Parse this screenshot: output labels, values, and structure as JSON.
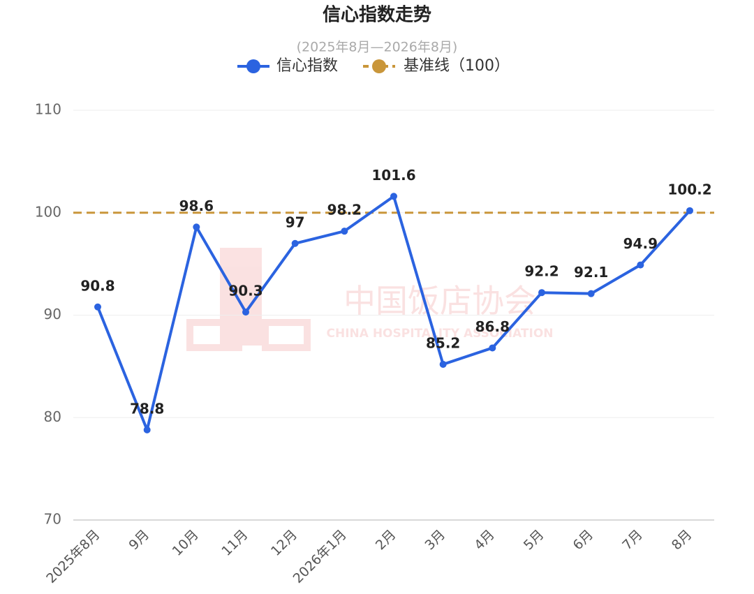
{
  "chart_data": {
    "type": "line",
    "title": "信心指数走势",
    "subtitle": "(2025年8月—2026年8月)",
    "categories": [
      "2025年8月",
      "9月",
      "10月",
      "11月",
      "12月",
      "2026年1月",
      "2月",
      "3月",
      "4月",
      "5月",
      "6月",
      "7月",
      "8月"
    ],
    "series": [
      {
        "name": "信心指数",
        "color": "#2b63e0",
        "values": [
          90.8,
          78.8,
          98.6,
          90.3,
          97,
          98.2,
          101.6,
          85.2,
          86.8,
          92.2,
          92.1,
          94.9,
          100.2
        ]
      }
    ],
    "baseline": {
      "name": "基准线（100）",
      "value": 100,
      "color": "#c9963a"
    },
    "ylim": [
      70,
      110
    ],
    "yticks": [
      70,
      80,
      90,
      100,
      110
    ],
    "grid": true,
    "watermark": {
      "title": "中国饭店协会",
      "subtitle": "CHINA HOSPITALITY ASSOCIATION"
    }
  }
}
